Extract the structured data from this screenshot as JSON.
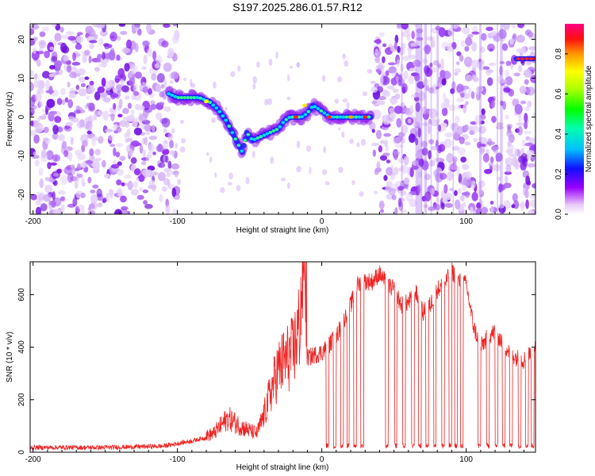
{
  "title": "S197.2025.286.01.57.R12",
  "chart_data": [
    {
      "type": "heatmap",
      "name": "spectrogram",
      "xlabel": "Height of straight line (km)",
      "ylabel": "Frequency (Hz)",
      "xlim": [
        -202,
        148
      ],
      "ylim": [
        -25,
        24
      ],
      "xticks": [
        -200,
        -100,
        0,
        100
      ],
      "yticks": [
        20,
        10,
        0,
        -10,
        -20
      ],
      "colorbar": {
        "label": "Normalized spectral amplitude",
        "range": [
          0,
          0.95
        ],
        "ticks": [
          0.0,
          0.2,
          0.4,
          0.6,
          0.8
        ]
      },
      "signal_track": {
        "x": [
          -106,
          -100,
          -92,
          -85,
          -78,
          -72,
          -66,
          -62,
          -58,
          -55,
          -52,
          -48,
          -42,
          -36,
          -30,
          -26,
          -22,
          -18,
          -14,
          -10,
          -6,
          -2,
          2,
          6,
          10,
          15,
          20,
          25,
          30,
          34
        ],
        "y": [
          6,
          5,
          5,
          5,
          4,
          2,
          -1,
          -4,
          -7,
          -9,
          -4,
          -6,
          -5,
          -4,
          -3,
          -1,
          0,
          0,
          0,
          1,
          3,
          2,
          1,
          0,
          0,
          0,
          0,
          0,
          0,
          0
        ]
      },
      "high_segment": {
        "x": [
          135,
          148
        ],
        "y": 15
      }
    },
    {
      "type": "line",
      "name": "snr",
      "xlabel": "Height of straight line (km)",
      "ylabel": "SNR (10 * v/v)",
      "xlim": [
        -202,
        148
      ],
      "ylim": [
        0,
        725
      ],
      "xticks": [
        -200,
        -100,
        0,
        100
      ],
      "yticks": [
        0,
        200,
        400,
        600
      ],
      "series": [
        {
          "name": "SNR",
          "color": "#ee2222",
          "envelope_x": [
            -202,
            -150,
            -110,
            -90,
            -75,
            -65,
            -55,
            -45,
            -40,
            -35,
            -30,
            -25,
            -20,
            -15,
            -12,
            -10,
            -5,
            0,
            5,
            10,
            15,
            20,
            25,
            30,
            35,
            40,
            45,
            50,
            55,
            60,
            65,
            70,
            75,
            80,
            85,
            90,
            95,
            100,
            105,
            110,
            115,
            120,
            125,
            130,
            135,
            140,
            145,
            148
          ],
          "envelope_y": [
            15,
            15,
            20,
            40,
            60,
            110,
            80,
            60,
            120,
            200,
            270,
            300,
            320,
            420,
            720,
            360,
            370,
            380,
            410,
            440,
            500,
            560,
            640,
            650,
            650,
            680,
            640,
            620,
            560,
            570,
            610,
            530,
            560,
            620,
            640,
            690,
            650,
            640,
            480,
            400,
            440,
            460,
            420,
            380,
            360,
            350,
            380,
            410
          ],
          "dropouts": [
            [
              3,
              5
            ],
            [
              8,
              10
            ],
            [
              13,
              15
            ],
            [
              17.5,
              19
            ],
            [
              22,
              24
            ],
            [
              27,
              29
            ],
            [
              44,
              46
            ],
            [
              50.5,
              52
            ],
            [
              56,
              58
            ],
            [
              62,
              64
            ],
            [
              67,
              69
            ],
            [
              72,
              74
            ],
            [
              77.5,
              79
            ],
            [
              83,
              85
            ],
            [
              88,
              90
            ],
            [
              92,
              94
            ],
            [
              96,
              98
            ],
            [
              108,
              110
            ],
            [
              114,
              116
            ],
            [
              120,
              122
            ],
            [
              125,
              127
            ],
            [
              130,
              132
            ],
            [
              136,
              138
            ],
            [
              141,
              143
            ],
            [
              145,
              147
            ]
          ]
        }
      ]
    }
  ]
}
